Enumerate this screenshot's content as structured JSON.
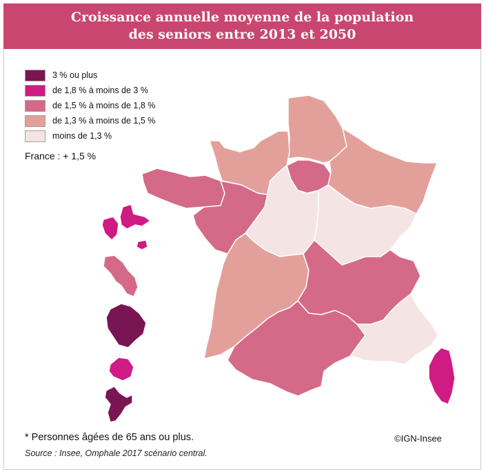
{
  "title": {
    "line1": "Croissance annuelle moyenne de la population",
    "line2": "des seniors entre 2013 et 2050"
  },
  "legend": [
    {
      "label": "3 % ou plus",
      "color": "#7a1553"
    },
    {
      "label": "de 1,8 % à moins de 3 %",
      "color": "#d01a84"
    },
    {
      "label": "de 1,5 % à moins de 1,8 %",
      "color": "#d46a87"
    },
    {
      "label": "de 1,3 % à moins de 1,5 %",
      "color": "#e3a09b"
    },
    {
      "label": "moins de 1,3 %",
      "color": "#f4e4e4"
    }
  ],
  "france_average": "France : + 1,5 %",
  "regions": [
    {
      "name": "Hauts-de-France",
      "class": "de 1,3 % à moins de 1,5 %"
    },
    {
      "name": "Normandie",
      "class": "de 1,3 % à moins de 1,5 %"
    },
    {
      "name": "Île-de-France",
      "class": "de 1,5 % à moins de 1,8 %"
    },
    {
      "name": "Grand Est",
      "class": "de 1,3 % à moins de 1,5 %"
    },
    {
      "name": "Bretagne",
      "class": "de 1,5 % à moins de 1,8 %"
    },
    {
      "name": "Pays de la Loire",
      "class": "de 1,5 % à moins de 1,8 %"
    },
    {
      "name": "Centre-Val de Loire",
      "class": "moins de 1,3 %"
    },
    {
      "name": "Bourgogne-Franche-Comté",
      "class": "moins de 1,3 %"
    },
    {
      "name": "Nouvelle-Aquitaine",
      "class": "de 1,3 % à moins de 1,5 %"
    },
    {
      "name": "Auvergne-Rhône-Alpes",
      "class": "de 1,5 % à moins de 1,8 %"
    },
    {
      "name": "Occitanie",
      "class": "de 1,5 % à moins de 1,8 %"
    },
    {
      "name": "Provence-Alpes-Côte d'Azur",
      "class": "moins de 1,3 %"
    },
    {
      "name": "Corse",
      "class": "de 1,8 % à moins de 3 %"
    },
    {
      "name": "Guadeloupe",
      "class": "de 1,8 % à moins de 3 %"
    },
    {
      "name": "Martinique",
      "class": "de 1,5 % à moins de 1,8 %"
    },
    {
      "name": "Guyane",
      "class": "3 % ou plus"
    },
    {
      "name": "La Réunion",
      "class": "de 1,8 % à moins de 3 %"
    },
    {
      "name": "Mayotte",
      "class": "3 % ou plus"
    }
  ],
  "footnote": "* Personnes âgées de 65 ans ou plus.",
  "source": "Source : Insee, Omphale 2017 scénario central.",
  "copyright": "©IGN-Insee"
}
